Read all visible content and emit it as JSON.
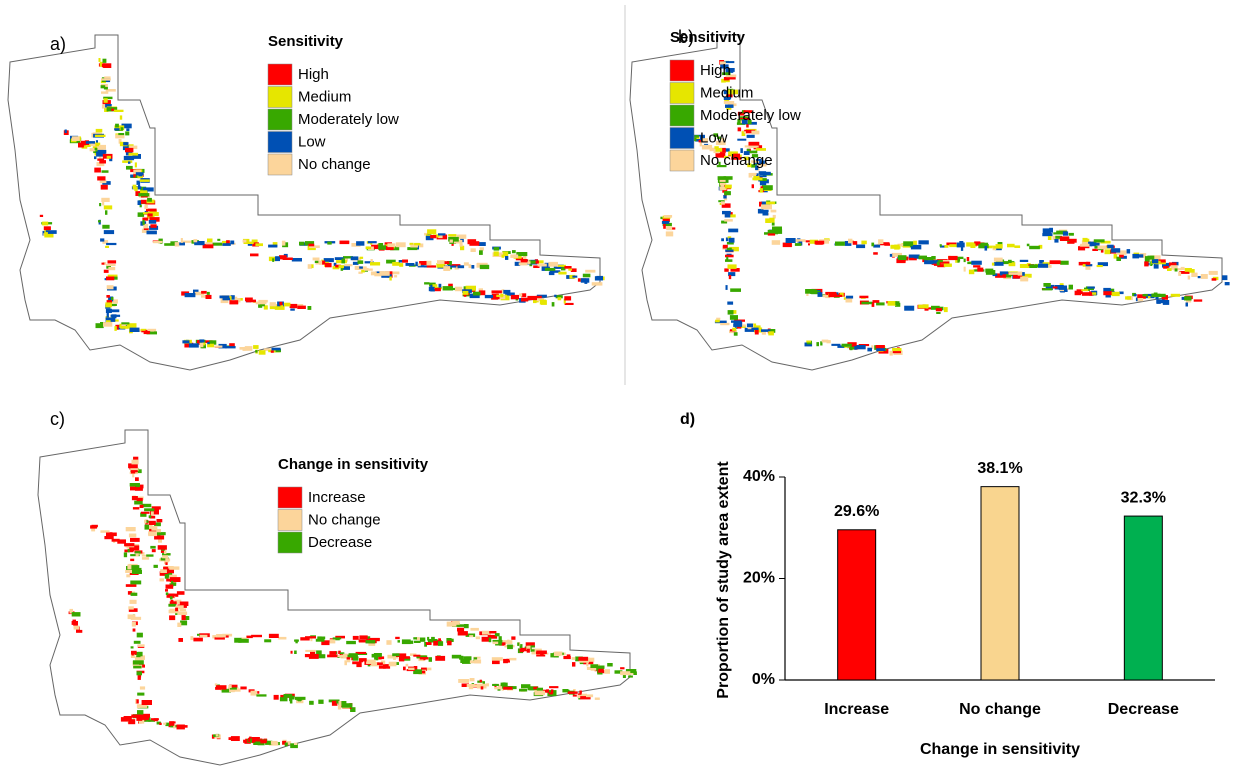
{
  "maps": [
    {
      "label": "a)",
      "legend_title": "Sensitivity",
      "legend": [
        {
          "name": "High",
          "color": "#ff0000"
        },
        {
          "name": "Medium",
          "color": "#e6e600"
        },
        {
          "name": "Moderately low",
          "color": "#38a800"
        },
        {
          "name": "Low",
          "color": "#0050b4"
        },
        {
          "name": "No change",
          "color": "#fcd59b"
        }
      ]
    },
    {
      "label": "b)",
      "legend_title": "Sensitivity",
      "legend": [
        {
          "name": "High",
          "color": "#ff0000"
        },
        {
          "name": "Medium",
          "color": "#e6e600"
        },
        {
          "name": "Moderately low",
          "color": "#38a800"
        },
        {
          "name": "Low",
          "color": "#0050b4"
        },
        {
          "name": "No change",
          "color": "#fcd59b"
        }
      ]
    },
    {
      "label": "c)",
      "legend_title": "Change in sensitivity",
      "legend": [
        {
          "name": "Increase",
          "color": "#ff0000"
        },
        {
          "name": "No change",
          "color": "#fcd59b"
        },
        {
          "name": "Decrease",
          "color": "#38a800"
        }
      ]
    }
  ],
  "chart_data": {
    "type": "bar",
    "panel_label": "d)",
    "x_label": "Change in sensitivity",
    "y_label": "Proportion of study area extent",
    "categories": [
      "Increase",
      "No change",
      "Decrease"
    ],
    "values": [
      29.6,
      38.1,
      32.3
    ],
    "value_labels": [
      "29.6%",
      "38.1%",
      "32.3%"
    ],
    "colors": [
      "#ff0000",
      "#f9d58f",
      "#00b050"
    ],
    "ylim": [
      0,
      40
    ],
    "yticks": [
      {
        "value": 0,
        "label": "0%"
      },
      {
        "value": 20,
        "label": "20%"
      },
      {
        "value": 40,
        "label": "40%"
      }
    ]
  }
}
